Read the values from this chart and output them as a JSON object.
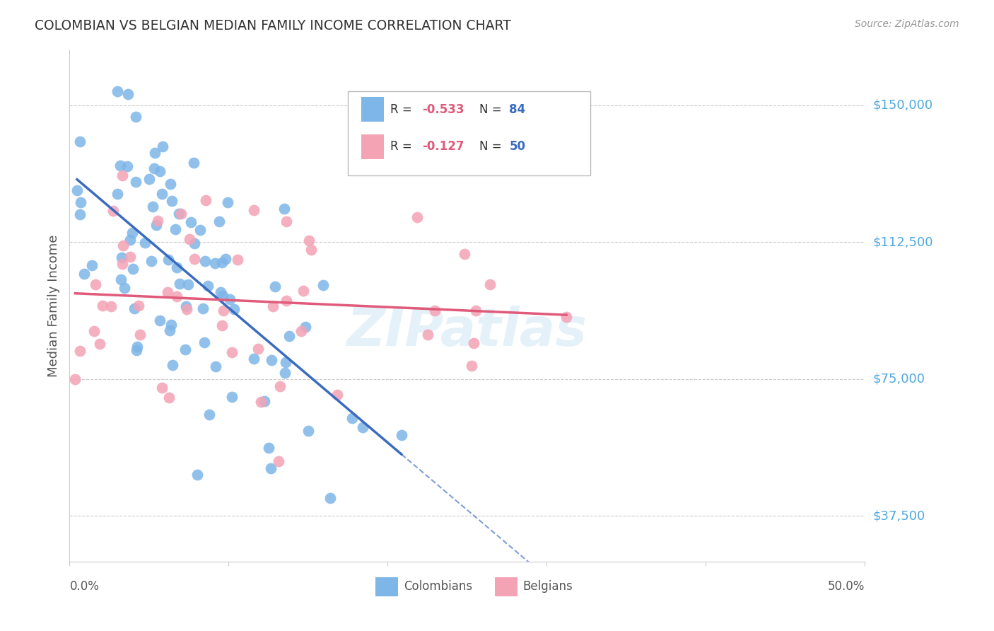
{
  "title": "COLOMBIAN VS BELGIAN MEDIAN FAMILY INCOME CORRELATION CHART",
  "source": "Source: ZipAtlas.com",
  "ylabel": "Median Family Income",
  "ytick_labels": [
    "$37,500",
    "$75,000",
    "$112,500",
    "$150,000"
  ],
  "ytick_values": [
    37500,
    75000,
    112500,
    150000
  ],
  "ymin": 25000,
  "ymax": 165000,
  "xmin": 0.0,
  "xmax": 0.5,
  "legend_blue_r": "-0.533",
  "legend_blue_n": "84",
  "legend_pink_r": "-0.127",
  "legend_pink_n": "50",
  "blue_color": "#7EB6E8",
  "pink_color": "#F4A3B5",
  "blue_line_color": "#3b6bbf",
  "pink_line_color": "#e05a7a",
  "watermark": "ZIPatlas",
  "colombians_label": "Colombians",
  "belgians_label": "Belgians"
}
